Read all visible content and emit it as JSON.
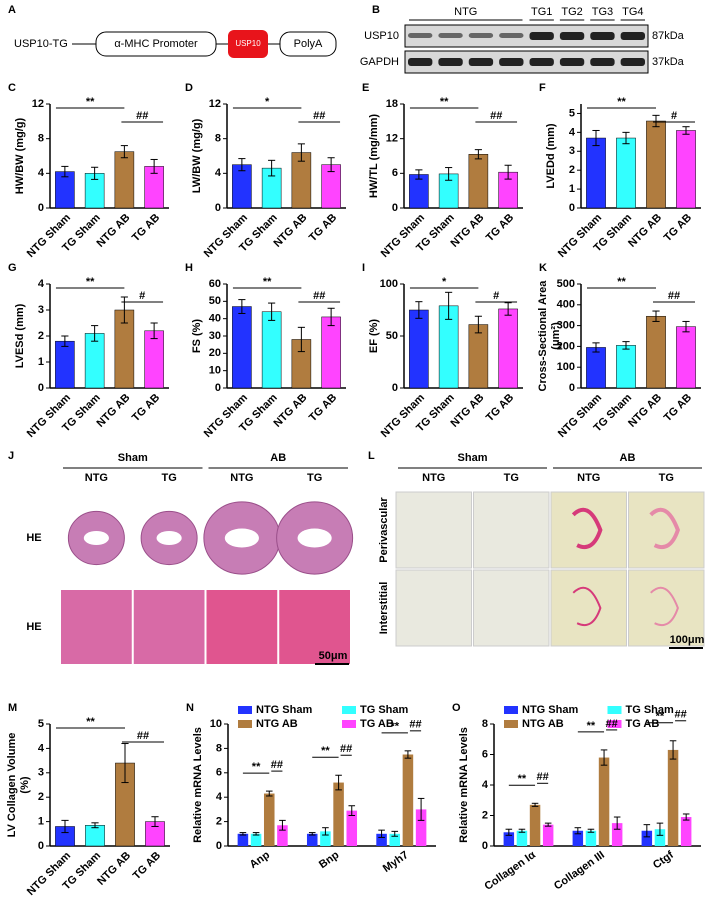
{
  "construct": {
    "panel": "A",
    "name": "USP10-TG",
    "elements": [
      "α-MHC Promoter",
      "USP10",
      "PolyA"
    ]
  },
  "blot": {
    "panel": "B",
    "lanes": [
      "NTG",
      "TG1",
      "TG2",
      "TG3",
      "TG4"
    ],
    "rows": [
      {
        "protein": "USP10",
        "size": "87kDa"
      },
      {
        "protein": "GAPDH",
        "size": "37kDa"
      }
    ]
  },
  "histology": [
    {
      "panel": "J",
      "groups": [
        "Sham",
        "AB"
      ],
      "columns": [
        "NTG",
        "TG",
        "NTG",
        "TG"
      ],
      "rows": [
        "HE",
        "HE"
      ],
      "scale": "50μm"
    },
    {
      "panel": "L",
      "groups": [
        "Sham",
        "AB"
      ],
      "columns": [
        "NTG",
        "TG",
        "NTG",
        "TG"
      ],
      "rows": [
        "Perivascular",
        "Interstitial"
      ],
      "scale": "100μm"
    }
  ],
  "chart_data": [
    {
      "panel": "C",
      "type": "bar",
      "ylabel": [
        "HW/BW (mg/g)"
      ],
      "categories": [
        "NTG Sham",
        "TG Sham",
        "NTG AB",
        "TG AB"
      ],
      "colors": [
        "#2233ff",
        "#33ffff",
        "#b07c3f",
        "#ff44ff"
      ],
      "values": [
        4.2,
        4.0,
        6.5,
        4.8
      ],
      "errors": [
        0.6,
        0.7,
        0.7,
        0.8
      ],
      "ylim": [
        0,
        12
      ],
      "yticks": [
        0,
        4,
        8,
        12
      ],
      "significance": [
        "**",
        "##"
      ]
    },
    {
      "panel": "D",
      "type": "bar",
      "ylabel": [
        "LW/BW (mg/g)"
      ],
      "categories": [
        "NTG Sham",
        "TG Sham",
        "NTG AB",
        "TG AB"
      ],
      "colors": [
        "#2233ff",
        "#33ffff",
        "#b07c3f",
        "#ff44ff"
      ],
      "values": [
        5.0,
        4.6,
        6.4,
        5.0
      ],
      "errors": [
        0.7,
        0.9,
        1.0,
        0.8
      ],
      "ylim": [
        0,
        12
      ],
      "yticks": [
        0,
        4,
        8,
        12
      ],
      "significance": [
        "*",
        "##"
      ]
    },
    {
      "panel": "E",
      "type": "bar",
      "ylabel": [
        "HW/TL (mg/mm)"
      ],
      "categories": [
        "NTG Sham",
        "TG Sham",
        "NTG AB",
        "TG AB"
      ],
      "colors": [
        "#2233ff",
        "#33ffff",
        "#b07c3f",
        "#ff44ff"
      ],
      "values": [
        5.8,
        5.9,
        9.3,
        6.2
      ],
      "errors": [
        0.8,
        1.1,
        0.8,
        1.2
      ],
      "ylim": [
        0,
        18
      ],
      "yticks": [
        0,
        6,
        12,
        18
      ],
      "significance": [
        "**",
        "##"
      ]
    },
    {
      "panel": "F",
      "type": "bar",
      "ylabel": [
        "LVEDd (mm)"
      ],
      "categories": [
        "NTG Sham",
        "TG Sham",
        "NTG AB",
        "TG AB"
      ],
      "colors": [
        "#2233ff",
        "#33ffff",
        "#b07c3f",
        "#ff44ff"
      ],
      "values": [
        3.7,
        3.7,
        4.6,
        4.1
      ],
      "errors": [
        0.4,
        0.3,
        0.3,
        0.2
      ],
      "ylim": [
        0,
        5.5
      ],
      "yticks": [
        0,
        1,
        2,
        3,
        4,
        5
      ],
      "significance": [
        "**",
        "#"
      ]
    },
    {
      "panel": "G",
      "type": "bar",
      "ylabel": [
        "LVESd (mm)"
      ],
      "categories": [
        "NTG Sham",
        "TG Sham",
        "NTG AB",
        "TG AB"
      ],
      "colors": [
        "#2233ff",
        "#33ffff",
        "#b07c3f",
        "#ff44ff"
      ],
      "values": [
        1.8,
        2.1,
        3.0,
        2.2
      ],
      "errors": [
        0.2,
        0.3,
        0.5,
        0.3
      ],
      "ylim": [
        0,
        4
      ],
      "yticks": [
        0,
        1,
        2,
        3,
        4
      ],
      "significance": [
        "**",
        "#"
      ]
    },
    {
      "panel": "H",
      "type": "bar",
      "ylabel": [
        "FS (%)"
      ],
      "categories": [
        "NTG Sham",
        "TG Sham",
        "NTG AB",
        "TG AB"
      ],
      "colors": [
        "#2233ff",
        "#33ffff",
        "#b07c3f",
        "#ff44ff"
      ],
      "values": [
        47,
        44,
        28,
        41
      ],
      "errors": [
        4,
        5,
        7,
        5
      ],
      "ylim": [
        0,
        60
      ],
      "yticks": [
        0,
        10,
        20,
        30,
        40,
        50,
        60
      ],
      "significance": [
        "**",
        "##"
      ]
    },
    {
      "panel": "I",
      "type": "bar",
      "ylabel": [
        "EF (%)"
      ],
      "categories": [
        "NTG Sham",
        "TG Sham",
        "NTG AB",
        "TG AB"
      ],
      "colors": [
        "#2233ff",
        "#33ffff",
        "#b07c3f",
        "#ff44ff"
      ],
      "values": [
        75,
        79,
        61,
        76
      ],
      "errors": [
        8,
        13,
        8,
        6
      ],
      "ylim": [
        0,
        100
      ],
      "yticks": [
        0,
        50,
        100
      ],
      "significance": [
        "*",
        "#"
      ]
    },
    {
      "panel": "K",
      "type": "bar",
      "ylabel": [
        "Cross-Sectional Area",
        "(μm²)"
      ],
      "categories": [
        "NTG Sham",
        "TG Sham",
        "NTG AB",
        "TG AB"
      ],
      "colors": [
        "#2233ff",
        "#33ffff",
        "#b07c3f",
        "#ff44ff"
      ],
      "values": [
        195,
        205,
        345,
        295
      ],
      "errors": [
        22,
        18,
        25,
        25
      ],
      "ylim": [
        0,
        500
      ],
      "yticks": [
        0,
        100,
        200,
        300,
        400,
        500
      ],
      "significance": [
        "**",
        "##"
      ]
    },
    {
      "panel": "M",
      "type": "bar",
      "ylabel": [
        "LV Collagen Volume",
        "(%)"
      ],
      "categories": [
        "NTG Sham",
        "TG Sham",
        "NTG AB",
        "TG AB"
      ],
      "colors": [
        "#2233ff",
        "#33ffff",
        "#b07c3f",
        "#ff44ff"
      ],
      "values": [
        0.8,
        0.85,
        3.4,
        1.0
      ],
      "errors": [
        0.25,
        0.1,
        0.8,
        0.2
      ],
      "ylim": [
        0,
        5
      ],
      "yticks": [
        0,
        1,
        2,
        3,
        4,
        5
      ],
      "significance": [
        "**",
        "##"
      ]
    },
    {
      "panel": "N",
      "type": "grouped_bar",
      "ylabel": [
        "Relative mRNA Levels"
      ],
      "categories": [
        "Anp",
        "Bnp",
        "Myh7"
      ],
      "ylim": [
        0,
        10
      ],
      "yticks": [
        0,
        2,
        4,
        6,
        8,
        10
      ],
      "series": [
        {
          "name": "NTG Sham",
          "color": "#2233ff",
          "values": [
            1.0,
            1.0,
            1.0
          ],
          "errors": [
            0.1,
            0.1,
            0.3
          ]
        },
        {
          "name": "TG Sham",
          "color": "#33ffff",
          "values": [
            1.0,
            1.2,
            1.0
          ],
          "errors": [
            0.1,
            0.3,
            0.2
          ]
        },
        {
          "name": "NTG AB",
          "color": "#b07c3f",
          "values": [
            4.3,
            5.2,
            7.5
          ],
          "errors": [
            0.2,
            0.6,
            0.3
          ]
        },
        {
          "name": "TG AB",
          "color": "#ff44ff",
          "values": [
            1.7,
            2.9,
            3.0
          ],
          "errors": [
            0.4,
            0.4,
            0.9
          ]
        }
      ],
      "significance": [
        [
          "**",
          "##"
        ],
        [
          "**",
          "##"
        ],
        [
          "**",
          "##"
        ]
      ]
    },
    {
      "panel": "O",
      "type": "grouped_bar",
      "ylabel": [
        "Relative mRNA Levels"
      ],
      "categories": [
        "Collagen Iα",
        "Collagen III",
        "Ctgf"
      ],
      "ylim": [
        0,
        8
      ],
      "yticks": [
        0,
        2,
        4,
        6,
        8
      ],
      "series": [
        {
          "name": "NTG Sham",
          "color": "#2233ff",
          "values": [
            0.9,
            1.0,
            1.0
          ],
          "errors": [
            0.2,
            0.2,
            0.4
          ]
        },
        {
          "name": "TG Sham",
          "color": "#33ffff",
          "values": [
            1.0,
            1.0,
            1.1
          ],
          "errors": [
            0.1,
            0.1,
            0.4
          ]
        },
        {
          "name": "NTG AB",
          "color": "#b07c3f",
          "values": [
            2.7,
            5.8,
            6.3
          ],
          "errors": [
            0.1,
            0.5,
            0.6
          ]
        },
        {
          "name": "TG AB",
          "color": "#ff44ff",
          "values": [
            1.4,
            1.5,
            1.9
          ],
          "errors": [
            0.1,
            0.4,
            0.2
          ]
        }
      ],
      "significance": [
        [
          "**",
          "##"
        ],
        [
          "**",
          "##"
        ],
        [
          "**",
          "##"
        ]
      ]
    }
  ]
}
